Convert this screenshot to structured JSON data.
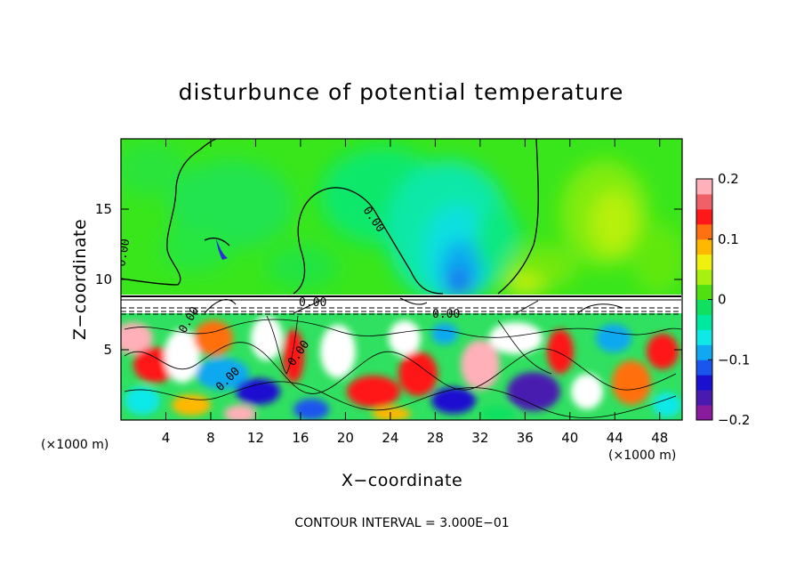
{
  "chart_data": {
    "type": "heatmap",
    "title": "disturbunce of potential temperature",
    "xlabel": "X−coordinate",
    "ylabel": "Z−coordinate",
    "x_unit": "(×1000 m)",
    "z_unit": "(×1000 m)",
    "xlim": [
      0,
      50
    ],
    "ylim": [
      0,
      20
    ],
    "x_ticks": [
      4,
      8,
      12,
      16,
      20,
      24,
      28,
      32,
      36,
      40,
      44,
      48
    ],
    "y_ticks": [
      5,
      10,
      15
    ],
    "colorbar": {
      "range": [
        -0.2,
        0.2
      ],
      "ticks": [
        {
          "value": 0.2,
          "label": "0.2"
        },
        {
          "value": 0.1,
          "label": "0.1"
        },
        {
          "value": 0,
          "label": "0"
        },
        {
          "value": -0.1,
          "label": "−0.1"
        },
        {
          "value": -0.2,
          "label": "−0.2"
        }
      ],
      "colors": [
        "#8a1a9e",
        "#4a1ab0",
        "#1a10d0",
        "#1a55ee",
        "#10a8f0",
        "#10e8e8",
        "#00e8a0",
        "#10e060",
        "#50e010",
        "#a8f010",
        "#f0f010",
        "#ffb800",
        "#ff7010",
        "#ff1818",
        "#f06068",
        "#ffb0b8"
      ]
    },
    "contour_labels": [
      "0.00"
    ],
    "background_level": 0.02,
    "lower_layer_note": "turbulent structure below z≈9 with values saturating beyond ±0.2",
    "footer": "CONTOUR INTERVAL = 3.000E−01"
  }
}
